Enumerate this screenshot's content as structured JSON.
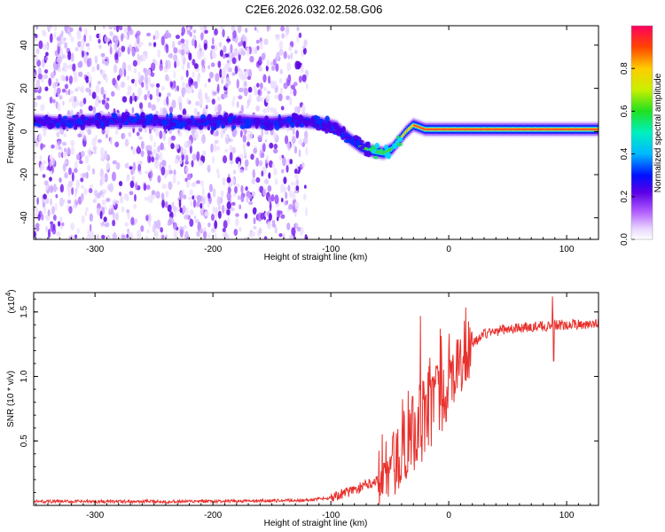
{
  "title": "C2E6.2026.032.02.58.G06",
  "chart_data": [
    {
      "type": "heatmap",
      "name": "spectrogram",
      "xlabel": "Height of straight line (km)",
      "ylabel": "Frequency (Hz)",
      "xlim": [
        -352,
        127
      ],
      "ylim": [
        -50,
        49
      ],
      "xticks": [
        -300,
        -200,
        -100,
        0,
        100
      ],
      "yticks": [
        -40,
        -20,
        0,
        20,
        40
      ],
      "colorbar": {
        "label": "Normalized spectral amplitude",
        "ticks": [
          0.0,
          0.2,
          0.4,
          0.6,
          0.8
        ],
        "range": [
          0,
          1
        ]
      },
      "ridge": {
        "x": [
          -352,
          -330,
          -300,
          -260,
          -220,
          -180,
          -150,
          -130,
          -110,
          -95,
          -85,
          -75,
          -65,
          -55,
          -48,
          -42,
          -36,
          -30,
          -25,
          -20,
          -10,
          0,
          20,
          60,
          100,
          127
        ],
        "freq": [
          5,
          4,
          5,
          5,
          4,
          5,
          4,
          5,
          4,
          2,
          -3,
          -7,
          -9,
          -10,
          -8,
          -4,
          0,
          3,
          2,
          1,
          1,
          1,
          1,
          1,
          1,
          1
        ]
      },
      "noise_region_x": [
        -352,
        -120
      ]
    },
    {
      "type": "line",
      "name": "snr",
      "xlabel": "Height of straight line (km)",
      "ylabel": "SNR (10 * v/v)",
      "scale_note": "(x10",
      "scale_exp": "4",
      "xlim": [
        -352,
        127
      ],
      "ylim": [
        0,
        1.65
      ],
      "xticks": [
        -300,
        -200,
        -100,
        0,
        100
      ],
      "yticks": [
        0.5,
        1.0,
        1.5
      ],
      "ytick_labels": [
        "0.5",
        "1.0",
        "1.5"
      ],
      "color": "#e8322e",
      "baseline": {
        "x": [
          -352,
          -200,
          -120,
          -100,
          -80,
          -60
        ],
        "y": [
          0.03,
          0.03,
          0.04,
          0.06,
          0.12,
          0.2
        ]
      },
      "trend": {
        "x": [
          -60,
          -50,
          -40,
          -30,
          -20,
          -10,
          0,
          10,
          20,
          30,
          50,
          80,
          100,
          127
        ],
        "y": [
          0.2,
          0.28,
          0.4,
          0.55,
          0.7,
          0.8,
          0.95,
          1.1,
          1.25,
          1.33,
          1.37,
          1.39,
          1.4,
          1.41
        ]
      },
      "spikes": [
        {
          "x": -24,
          "y": 1.47
        },
        {
          "x": 88,
          "y": 1.62
        },
        {
          "x": 89,
          "y": 1.12
        }
      ]
    }
  ]
}
